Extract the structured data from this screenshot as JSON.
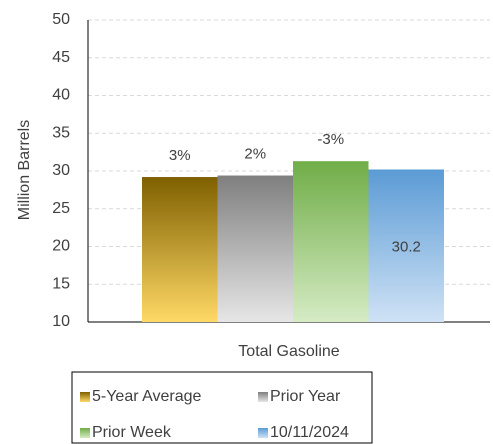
{
  "chart_data": {
    "type": "bar",
    "categories": [
      "Total Gasoline"
    ],
    "y_label": "Million Barrels",
    "ylim": [
      10,
      50
    ],
    "yticks": [
      10,
      15,
      20,
      25,
      30,
      35,
      40,
      45,
      50
    ],
    "grid": true,
    "series": [
      {
        "name": "5-Year Average",
        "color": "#7f6000",
        "gradient_end": "#ffd966",
        "values": [
          29.2
        ],
        "annotation": "3%"
      },
      {
        "name": "Prior Year",
        "color": "#7f7f7f",
        "gradient_end": "#e6e6e6",
        "values": [
          29.4
        ],
        "annotation": "2%"
      },
      {
        "name": "Prior Week",
        "color": "#70ad47",
        "gradient_end": "#d5ebc4",
        "values": [
          31.3
        ],
        "annotation": "-3%"
      },
      {
        "name": "10/11/2024",
        "color": "#5b9bd5",
        "gradient_end": "#cfe2f5",
        "values": [
          30.2
        ],
        "show_value_label": true
      }
    ],
    "legend": "bottom"
  }
}
